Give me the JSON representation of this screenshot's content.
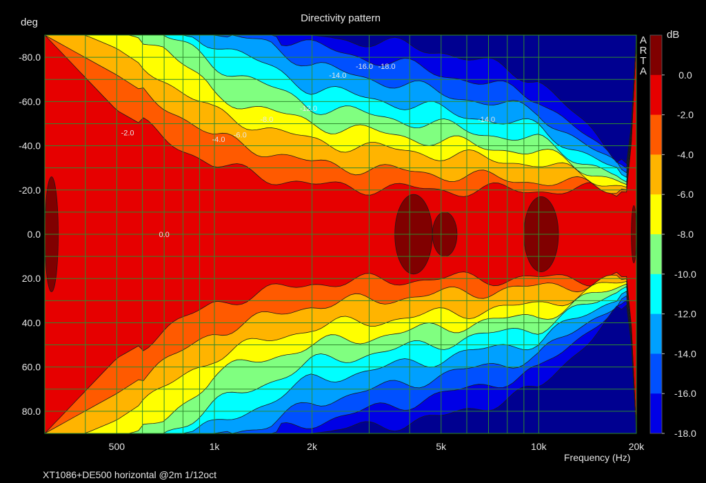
{
  "chart_data": {
    "type": "heatmap",
    "title": "Directivity pattern",
    "xlabel": "Frequency (Hz)",
    "ylabel": "deg",
    "colorbar_unit": "dB",
    "footer": "XT1086+DE500 horizontal @2m 1/12oct",
    "brand": [
      "A",
      "R",
      "T",
      "A"
    ],
    "xscale": "log",
    "xlim": [
      300,
      20000
    ],
    "ylim": [
      -90,
      90
    ],
    "xticks": [
      {
        "label": "500",
        "value": 500
      },
      {
        "label": "1k",
        "value": 1000
      },
      {
        "label": "2k",
        "value": 2000
      },
      {
        "label": "5k",
        "value": 5000
      },
      {
        "label": "10k",
        "value": 10000
      },
      {
        "label": "20k",
        "value": 20000
      }
    ],
    "yticks": [
      {
        "label": "-80.0",
        "value": -80
      },
      {
        "label": "-60.0",
        "value": -60
      },
      {
        "label": "-40.0",
        "value": -40
      },
      {
        "label": "-20.0",
        "value": -20
      },
      {
        "label": "0.0",
        "value": 0
      },
      {
        "label": "20.0",
        "value": 20
      },
      {
        "label": "40.0",
        "value": 40
      },
      {
        "label": "60.0",
        "value": 60
      },
      {
        "label": "80.0",
        "value": 80
      }
    ],
    "grid": true,
    "colorbar": {
      "levels": [
        {
          "label": "0.0",
          "value": 0,
          "color": "#800000"
        },
        {
          "label": "-2.0",
          "value": -2,
          "color": "#e60000"
        },
        {
          "label": "-4.0",
          "value": -4,
          "color": "#ff5a00"
        },
        {
          "label": "-6.0",
          "value": -6,
          "color": "#ffb400"
        },
        {
          "label": "-8.0",
          "value": -8,
          "color": "#ffff00"
        },
        {
          "label": "-10.0",
          "value": -10,
          "color": "#80ff80"
        },
        {
          "label": "-12.0",
          "value": -12,
          "color": "#00ffff"
        },
        {
          "label": "-14.0",
          "value": -14,
          "color": "#00a0ff"
        },
        {
          "label": "-16.0",
          "value": -16,
          "color": "#0050ff"
        },
        {
          "label": "-18.0",
          "value": -18,
          "color": "#0000e6"
        }
      ],
      "below_color": "#000090"
    },
    "contour_bands": [
      {
        "level": -2,
        "angle_by_freq": [
          [
            300,
            90
          ],
          [
            500,
            56
          ],
          [
            1000,
            31
          ],
          [
            2000,
            22
          ],
          [
            5000,
            20
          ],
          [
            10000,
            20
          ],
          [
            15000,
            20
          ],
          [
            19000,
            19
          ],
          [
            20000,
            90
          ]
        ]
      },
      {
        "level": -4,
        "angle_by_freq": [
          [
            300,
            90
          ],
          [
            500,
            72
          ],
          [
            1000,
            44
          ],
          [
            2000,
            32
          ],
          [
            5000,
            27
          ],
          [
            10000,
            24
          ],
          [
            15000,
            22
          ],
          [
            19000,
            20
          ],
          [
            20000,
            90
          ]
        ]
      },
      {
        "level": -6,
        "angle_by_freq": [
          [
            300,
            90
          ],
          [
            400,
            90
          ],
          [
            500,
            84
          ],
          [
            1000,
            55
          ],
          [
            2000,
            42
          ],
          [
            5000,
            36
          ],
          [
            10000,
            32
          ],
          [
            15000,
            25
          ],
          [
            19000,
            21
          ],
          [
            20000,
            90
          ]
        ]
      },
      {
        "level": -8,
        "angle_by_freq": [
          [
            300,
            90
          ],
          [
            550,
            90
          ],
          [
            700,
            85
          ],
          [
            1000,
            63
          ],
          [
            2000,
            50
          ],
          [
            5000,
            42
          ],
          [
            10000,
            37
          ],
          [
            15000,
            28
          ],
          [
            19000,
            22
          ],
          [
            20000,
            90
          ]
        ]
      },
      {
        "level": -10,
        "angle_by_freq": [
          [
            300,
            90
          ],
          [
            700,
            90
          ],
          [
            1000,
            77
          ],
          [
            2000,
            58
          ],
          [
            5000,
            49
          ],
          [
            10000,
            42
          ],
          [
            15000,
            31
          ],
          [
            19000,
            23
          ],
          [
            20000,
            90
          ]
        ]
      },
      {
        "level": -12,
        "angle_by_freq": [
          [
            300,
            90
          ],
          [
            800,
            90
          ],
          [
            1000,
            87
          ],
          [
            2000,
            66
          ],
          [
            5000,
            56
          ],
          [
            10000,
            48
          ],
          [
            15000,
            34
          ],
          [
            19000,
            25
          ],
          [
            20000,
            90
          ]
        ]
      },
      {
        "level": -14,
        "angle_by_freq": [
          [
            300,
            90
          ],
          [
            1000,
            90
          ],
          [
            1500,
            86
          ],
          [
            2000,
            76
          ],
          [
            5000,
            64
          ],
          [
            10000,
            55
          ],
          [
            15000,
            37
          ],
          [
            19000,
            27
          ],
          [
            20000,
            90
          ]
        ]
      },
      {
        "level": -16,
        "angle_by_freq": [
          [
            300,
            90
          ],
          [
            1500,
            90
          ],
          [
            2000,
            85
          ],
          [
            5000,
            73
          ],
          [
            10000,
            62
          ],
          [
            15000,
            40
          ],
          [
            19000,
            29
          ],
          [
            20000,
            90
          ]
        ]
      },
      {
        "level": -18,
        "angle_by_freq": [
          [
            300,
            90
          ],
          [
            2000,
            90
          ],
          [
            3000,
            87
          ],
          [
            5000,
            83
          ],
          [
            10000,
            70
          ],
          [
            15000,
            44
          ],
          [
            19000,
            31
          ],
          [
            20000,
            90
          ]
        ]
      }
    ],
    "zero_db_regions": [
      {
        "freq_range": [
          300,
          330
        ],
        "angle_range": [
          -26,
          26
        ]
      },
      {
        "freq_range": [
          3600,
          4700
        ],
        "angle_range": [
          -18,
          18
        ]
      },
      {
        "freq_range": [
          4700,
          5600
        ],
        "angle_range": [
          -10,
          10
        ]
      },
      {
        "freq_range": [
          9000,
          11500
        ],
        "angle_range": [
          -17,
          17
        ]
      },
      {
        "freq_range": [
          19300,
          20000
        ],
        "angle_range": [
          -13,
          13
        ]
      }
    ],
    "contour_labels": [
      {
        "text": "0.0",
        "freq": 700,
        "angle": 0
      },
      {
        "text": "-2.0",
        "freq": 540,
        "angle": -46
      },
      {
        "text": "-4.0",
        "freq": 1030,
        "angle": -43
      },
      {
        "text": "-6.0",
        "freq": 1200,
        "angle": -45
      },
      {
        "text": "-8.0",
        "freq": 1450,
        "angle": -52
      },
      {
        "text": "-12.0",
        "freq": 1950,
        "angle": -57
      },
      {
        "text": "-14.0",
        "freq": 2400,
        "angle": -72
      },
      {
        "text": "-16.0",
        "freq": 2900,
        "angle": -76
      },
      {
        "text": "-18.0",
        "freq": 3400,
        "angle": -76
      },
      {
        "text": "-14.0",
        "freq": 6900,
        "angle": -52
      }
    ]
  }
}
